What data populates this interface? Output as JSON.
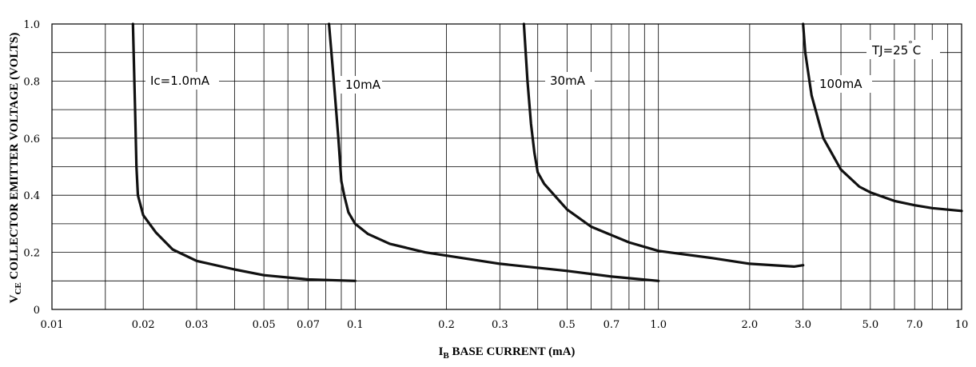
{
  "chart_data": {
    "type": "line",
    "x_scale": "log",
    "xlim": [
      0.01,
      10
    ],
    "ylim": [
      0,
      1.0
    ],
    "grid": true,
    "xlabel": {
      "main": "I",
      "sub": "B",
      "rest": " BASE CURRENT (mA)"
    },
    "ylabel": {
      "main": "V",
      "sub": "CE",
      "rest": " COLLECTOR EMITTER VOLTAGE (VOLTS)"
    },
    "x_ticks": [
      {
        "value": 0.01,
        "label": "0.01"
      },
      {
        "value": 0.02,
        "label": "0.02"
      },
      {
        "value": 0.03,
        "label": "0.03"
      },
      {
        "value": 0.05,
        "label": "0.05"
      },
      {
        "value": 0.07,
        "label": "0.07"
      },
      {
        "value": 0.1,
        "label": "0.1"
      },
      {
        "value": 0.2,
        "label": "0.2"
      },
      {
        "value": 0.3,
        "label": "0.3"
      },
      {
        "value": 0.5,
        "label": "0.5"
      },
      {
        "value": 0.7,
        "label": "0.7"
      },
      {
        "value": 1.0,
        "label": "1.0"
      },
      {
        "value": 2.0,
        "label": "2.0"
      },
      {
        "value": 3.0,
        "label": "3.0"
      },
      {
        "value": 5.0,
        "label": "5.0"
      },
      {
        "value": 7.0,
        "label": "7.0"
      },
      {
        "value": 10,
        "label": "10"
      }
    ],
    "x_minor_grid": [
      0.015,
      0.02,
      0.03,
      0.04,
      0.05,
      0.06,
      0.07,
      0.08,
      0.09,
      0.1,
      0.2,
      0.3,
      0.4,
      0.5,
      0.6,
      0.7,
      0.8,
      0.9,
      1.0,
      2.0,
      3.0,
      4.0,
      5.0,
      6.0,
      7.0,
      8.0,
      9.0
    ],
    "y_ticks": [
      {
        "value": 0,
        "label": "0"
      },
      {
        "value": 0.2,
        "label": "0.2"
      },
      {
        "value": 0.4,
        "label": "0.4"
      },
      {
        "value": 0.6,
        "label": "0.6"
      },
      {
        "value": 0.8,
        "label": "0.8"
      },
      {
        "value": 1.0,
        "label": "1.0"
      }
    ],
    "y_grid": [
      0.1,
      0.2,
      0.3,
      0.4,
      0.5,
      0.6,
      0.7,
      0.8,
      0.9
    ],
    "series": [
      {
        "name": "Ic=1.0mA",
        "points": [
          [
            0.0185,
            1.0
          ],
          [
            0.0188,
            0.7
          ],
          [
            0.019,
            0.5
          ],
          [
            0.0192,
            0.4
          ],
          [
            0.02,
            0.33
          ],
          [
            0.022,
            0.27
          ],
          [
            0.025,
            0.21
          ],
          [
            0.03,
            0.17
          ],
          [
            0.04,
            0.14
          ],
          [
            0.05,
            0.12
          ],
          [
            0.07,
            0.105
          ],
          [
            0.1,
            0.1
          ]
        ]
      },
      {
        "name": "10mA",
        "points": [
          [
            0.082,
            1.0
          ],
          [
            0.085,
            0.8
          ],
          [
            0.088,
            0.6
          ],
          [
            0.09,
            0.45
          ],
          [
            0.092,
            0.4
          ],
          [
            0.095,
            0.34
          ],
          [
            0.1,
            0.3
          ],
          [
            0.11,
            0.265
          ],
          [
            0.13,
            0.23
          ],
          [
            0.17,
            0.2
          ],
          [
            0.3,
            0.16
          ],
          [
            0.5,
            0.135
          ],
          [
            0.7,
            0.115
          ],
          [
            1.0,
            0.1
          ]
        ]
      },
      {
        "name": "30mA",
        "points": [
          [
            0.36,
            1.0
          ],
          [
            0.37,
            0.8
          ],
          [
            0.38,
            0.65
          ],
          [
            0.39,
            0.55
          ],
          [
            0.4,
            0.48
          ],
          [
            0.42,
            0.44
          ],
          [
            0.5,
            0.35
          ],
          [
            0.6,
            0.29
          ],
          [
            0.8,
            0.235
          ],
          [
            1.0,
            0.205
          ],
          [
            1.5,
            0.18
          ],
          [
            2.0,
            0.16
          ],
          [
            2.8,
            0.15
          ],
          [
            3.0,
            0.155
          ]
        ]
      },
      {
        "name": "100mA",
        "points": [
          [
            3.0,
            1.0
          ],
          [
            3.05,
            0.9
          ],
          [
            3.2,
            0.75
          ],
          [
            3.5,
            0.6
          ],
          [
            4.0,
            0.49
          ],
          [
            4.6,
            0.43
          ],
          [
            5.0,
            0.41
          ],
          [
            6.0,
            0.38
          ],
          [
            7.0,
            0.365
          ],
          [
            8.0,
            0.355
          ],
          [
            10,
            0.345
          ]
        ]
      }
    ],
    "annotation": {
      "main": "TJ=25",
      "degree": "°",
      "unit": "C"
    }
  }
}
